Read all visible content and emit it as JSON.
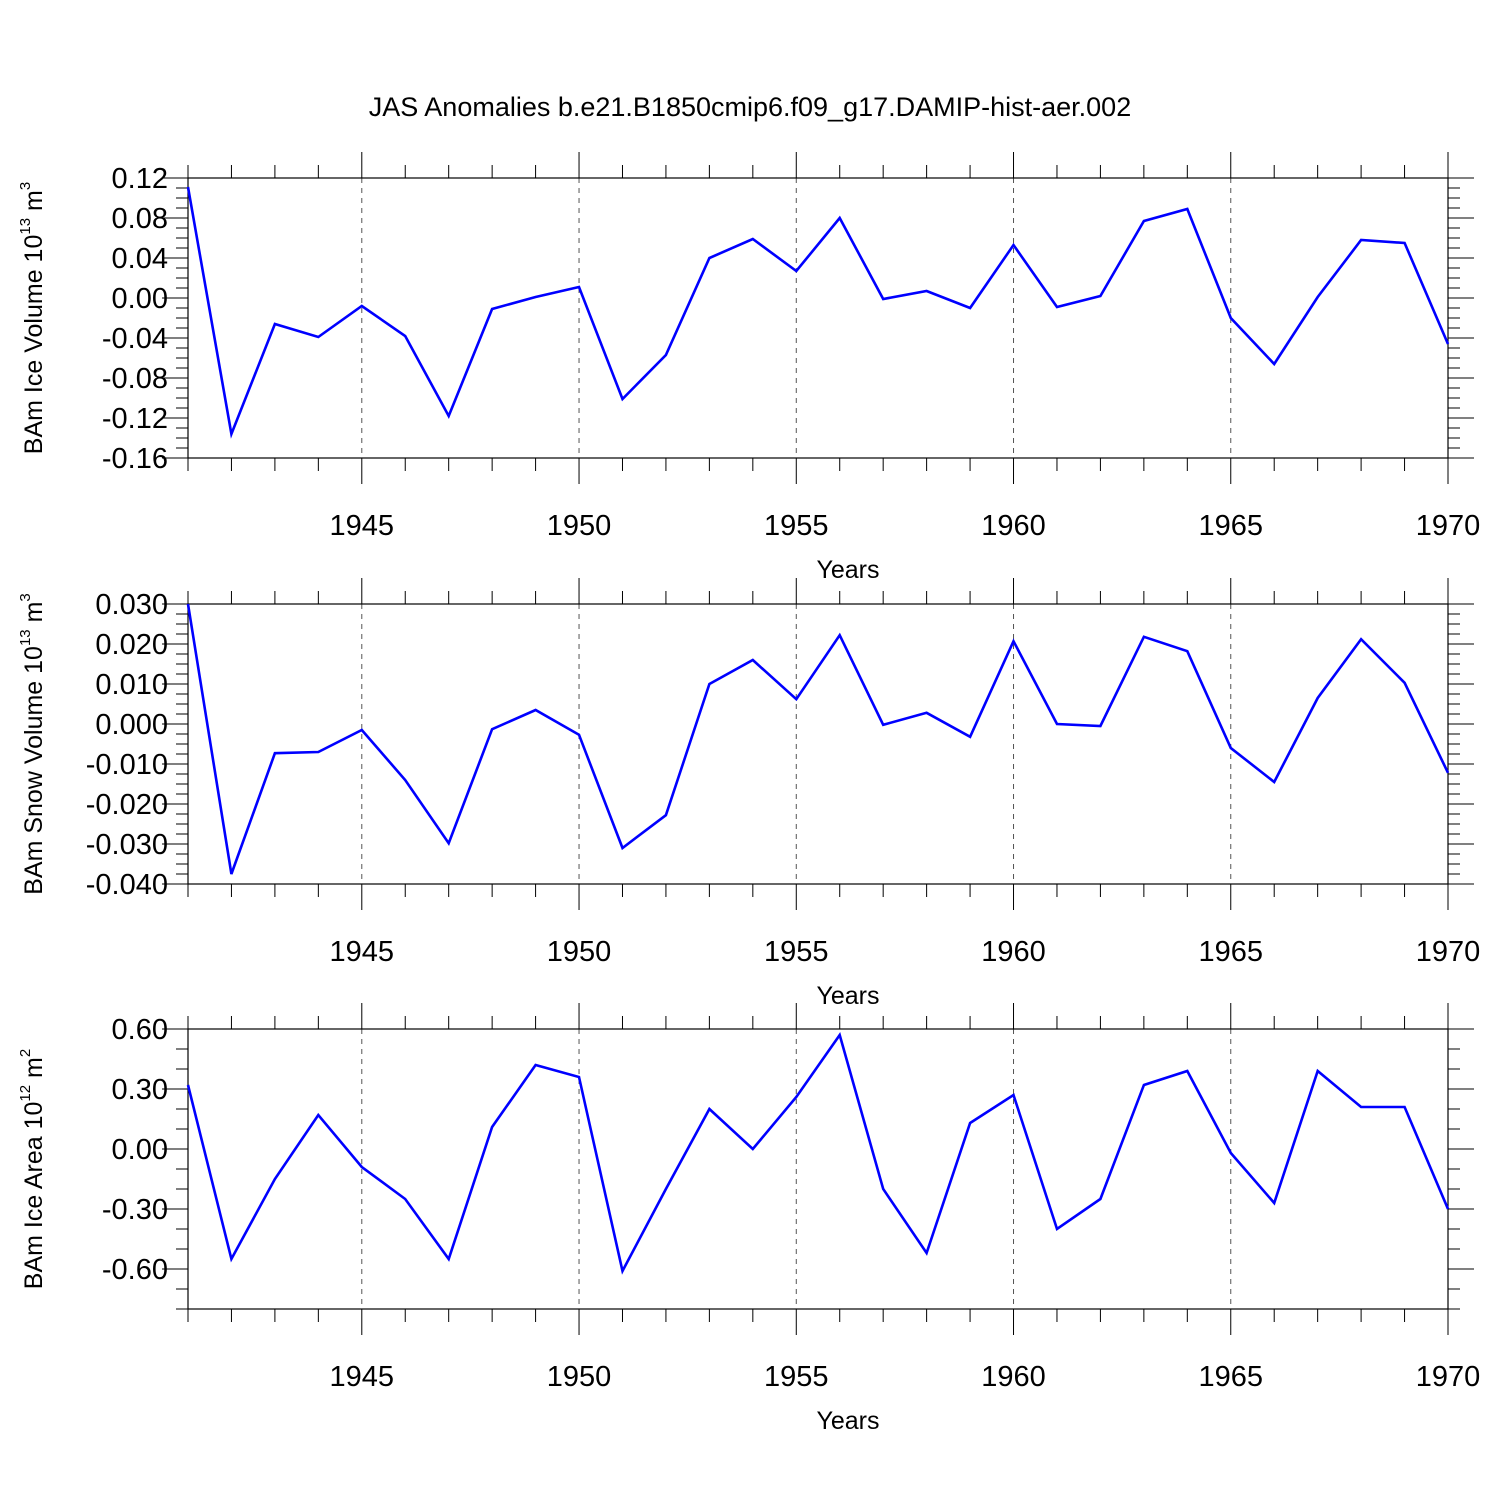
{
  "figure": {
    "title": "JAS Anomalies b.e21.B1850cmip6.f09_g17.DAMIP-hist-aer.002"
  },
  "colors": {
    "series": "#0000ff",
    "axes": "#000000",
    "grid": "#555555"
  },
  "chart_data": [
    {
      "type": "line",
      "ylabel": {
        "main": "BAm Ice Volume 10",
        "exp": "13",
        "unit": " m",
        "unit_exp": "3"
      },
      "xlabel": "Years",
      "xlim": [
        1941,
        1970
      ],
      "ylim": [
        -0.16,
        0.12
      ],
      "x_ticks": [
        1945,
        1950,
        1955,
        1960,
        1965,
        1970
      ],
      "x_tick_labels": [
        "1945",
        "1950",
        "1955",
        "1960",
        "1965",
        "1970"
      ],
      "y_ticks": [
        -0.16,
        -0.12,
        -0.08,
        -0.04,
        0.0,
        0.04,
        0.08,
        0.12
      ],
      "y_tick_labels": [
        "-0.16",
        "-0.12",
        "-0.08",
        "-0.04",
        "0.00",
        "0.04",
        "0.08",
        "0.12"
      ],
      "y_minor_step": 0.01,
      "x": [
        1941,
        1942,
        1943,
        1944,
        1945,
        1946,
        1947,
        1948,
        1949,
        1950,
        1951,
        1952,
        1953,
        1954,
        1955,
        1956,
        1957,
        1958,
        1959,
        1960,
        1961,
        1962,
        1963,
        1964,
        1965,
        1966,
        1967,
        1968,
        1969,
        1970
      ],
      "series": [
        {
          "name": "BAm Ice Volume",
          "values": [
            0.111,
            -0.136,
            -0.026,
            -0.039,
            -0.008,
            -0.038,
            -0.118,
            -0.011,
            0.001,
            0.011,
            -0.101,
            -0.057,
            0.04,
            0.059,
            0.027,
            0.08,
            -0.001,
            0.007,
            -0.01,
            0.053,
            -0.009,
            0.002,
            0.077,
            0.089,
            -0.02,
            -0.066,
            0.001,
            0.058,
            0.055,
            -0.046
          ]
        }
      ]
    },
    {
      "type": "line",
      "ylabel": {
        "main": "BAm Snow Volume 10",
        "exp": "13",
        "unit": " m",
        "unit_exp": "3"
      },
      "xlabel": "Years",
      "xlim": [
        1941,
        1970
      ],
      "ylim": [
        -0.04,
        0.03
      ],
      "x_ticks": [
        1945,
        1950,
        1955,
        1960,
        1965,
        1970
      ],
      "x_tick_labels": [
        "1945",
        "1950",
        "1955",
        "1960",
        "1965",
        "1970"
      ],
      "y_ticks": [
        -0.04,
        -0.03,
        -0.02,
        -0.01,
        0.0,
        0.01,
        0.02,
        0.03
      ],
      "y_tick_labels": [
        "-0.040",
        "-0.030",
        "-0.020",
        "-0.010",
        "0.000",
        "0.010",
        "0.020",
        "0.030"
      ],
      "y_minor_step": 0.0025,
      "x": [
        1941,
        1942,
        1943,
        1944,
        1945,
        1946,
        1947,
        1948,
        1949,
        1950,
        1951,
        1952,
        1953,
        1954,
        1955,
        1956,
        1957,
        1958,
        1959,
        1960,
        1961,
        1962,
        1963,
        1964,
        1965,
        1966,
        1967,
        1968,
        1969,
        1970
      ],
      "series": [
        {
          "name": "BAm Snow Volume",
          "values": [
            0.03,
            -0.0375,
            -0.0073,
            -0.007,
            -0.0015,
            -0.014,
            -0.0298,
            -0.0013,
            0.0035,
            -0.0027,
            -0.031,
            -0.0228,
            0.01,
            0.016,
            0.0062,
            0.0222,
            -0.0002,
            0.0028,
            -0.0032,
            0.0207,
            0.0,
            -0.0005,
            0.0218,
            0.0182,
            -0.006,
            -0.0145,
            0.0065,
            0.0212,
            0.0103,
            -0.0122
          ]
        }
      ]
    },
    {
      "type": "line",
      "ylabel": {
        "main": "BAm Ice Area 10",
        "exp": "12",
        "unit": " m",
        "unit_exp": "2"
      },
      "xlabel": "Years",
      "xlim": [
        1941,
        1970
      ],
      "ylim": [
        -0.8,
        0.6
      ],
      "x_ticks": [
        1945,
        1950,
        1955,
        1960,
        1965,
        1970
      ],
      "x_tick_labels": [
        "1945",
        "1950",
        "1955",
        "1960",
        "1965",
        "1970"
      ],
      "y_ticks": [
        -0.6,
        -0.3,
        0.0,
        0.3,
        0.6
      ],
      "y_tick_labels": [
        "-0.60",
        "-0.30",
        "0.00",
        "0.30",
        "0.60"
      ],
      "y_minor_step": 0.1,
      "x": [
        1941,
        1942,
        1943,
        1944,
        1945,
        1946,
        1947,
        1948,
        1949,
        1950,
        1951,
        1952,
        1953,
        1954,
        1955,
        1956,
        1957,
        1958,
        1959,
        1960,
        1961,
        1962,
        1963,
        1964,
        1965,
        1966,
        1967,
        1968,
        1969,
        1970
      ],
      "series": [
        {
          "name": "BAm Ice Area",
          "values": [
            0.32,
            -0.55,
            -0.15,
            0.17,
            -0.09,
            -0.25,
            -0.55,
            0.11,
            0.42,
            0.36,
            -0.61,
            -0.2,
            0.2,
            0.0,
            0.26,
            0.57,
            -0.2,
            -0.52,
            0.13,
            0.27,
            -0.4,
            -0.25,
            0.32,
            0.39,
            -0.02,
            -0.27,
            0.39,
            0.21,
            0.21,
            -0.3
          ]
        }
      ]
    }
  ]
}
